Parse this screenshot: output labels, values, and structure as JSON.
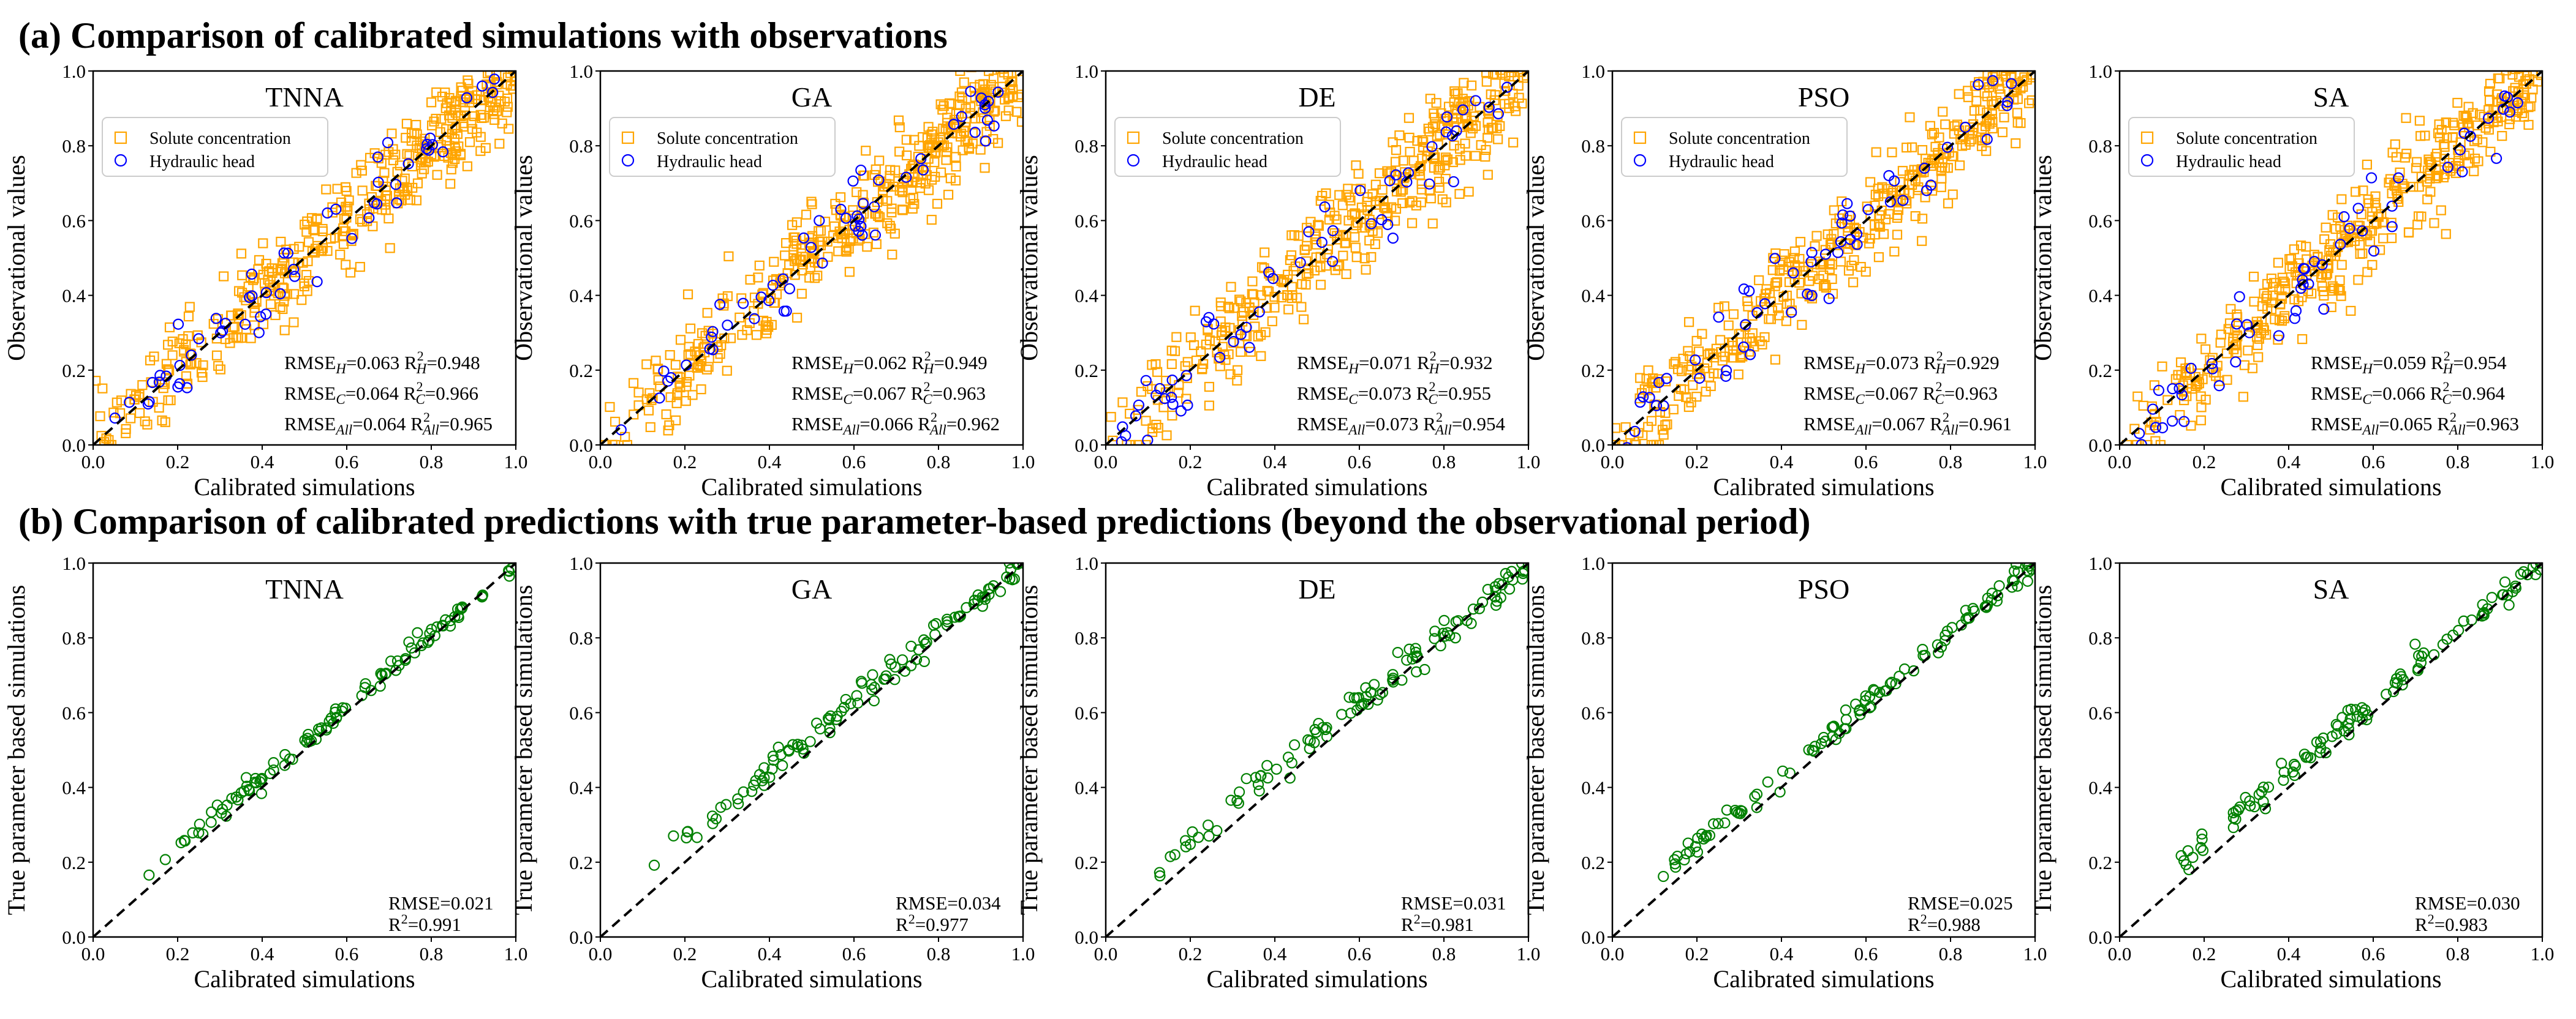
{
  "chart_data": {
    "type": "scatter",
    "rows": [
      {
        "title": "(a) Comparison of calibrated simulations with observations",
        "xlabel": "Calibrated simulations",
        "ylabel": "Observational values",
        "xlim": [
          0,
          1
        ],
        "ylim": [
          0,
          1
        ],
        "ticks": [
          "0.0",
          "0.2",
          "0.4",
          "0.6",
          "0.8",
          "1.0"
        ],
        "legend": {
          "position": "upper-left",
          "entries": [
            "Solute concentration",
            "Hydraulic head"
          ]
        },
        "series_colors": {
          "solute": "#FFA500",
          "head": "#0000FF"
        },
        "reference_line": "y = x (black dashed)",
        "panels": [
          {
            "name": "TNNA",
            "rmse_h": "0.063",
            "r2_h": "0.948",
            "rmse_c": "0.064",
            "r2_c": "0.966",
            "rmse_all": "0.064",
            "r2_all": "0.965"
          },
          {
            "name": "GA",
            "rmse_h": "0.062",
            "r2_h": "0.949",
            "rmse_c": "0.067",
            "r2_c": "0.963",
            "rmse_all": "0.066",
            "r2_all": "0.962"
          },
          {
            "name": "DE",
            "rmse_h": "0.071",
            "r2_h": "0.932",
            "rmse_c": "0.073",
            "r2_c": "0.955",
            "rmse_all": "0.073",
            "r2_all": "0.954"
          },
          {
            "name": "PSO",
            "rmse_h": "0.073",
            "r2_h": "0.929",
            "rmse_c": "0.067",
            "r2_c": "0.963",
            "rmse_all": "0.067",
            "r2_all": "0.961"
          },
          {
            "name": "SA",
            "rmse_h": "0.059",
            "r2_h": "0.954",
            "rmse_c": "0.066",
            "r2_c": "0.964",
            "rmse_all": "0.065",
            "r2_all": "0.963"
          }
        ]
      },
      {
        "title": "(b) Comparison of calibrated predictions with true parameter-based predictions (beyond the observational period)",
        "xlabel": "Calibrated simulations",
        "ylabel": "True parameter based simulations",
        "xlim": [
          0,
          1
        ],
        "ylim": [
          0,
          1
        ],
        "ticks": [
          "0.0",
          "0.2",
          "0.4",
          "0.6",
          "0.8",
          "1.0"
        ],
        "series_colors": {
          "prediction": "#008000"
        },
        "reference_line": "y = x (black dashed)",
        "panels": [
          {
            "name": "TNNA",
            "rmse": "0.021",
            "r2": "0.991"
          },
          {
            "name": "GA",
            "rmse": "0.034",
            "r2": "0.977"
          },
          {
            "name": "DE",
            "rmse": "0.031",
            "r2": "0.981"
          },
          {
            "name": "PSO",
            "rmse": "0.025",
            "r2": "0.988"
          },
          {
            "name": "SA",
            "rmse": "0.030",
            "r2": "0.983"
          }
        ]
      }
    ]
  }
}
